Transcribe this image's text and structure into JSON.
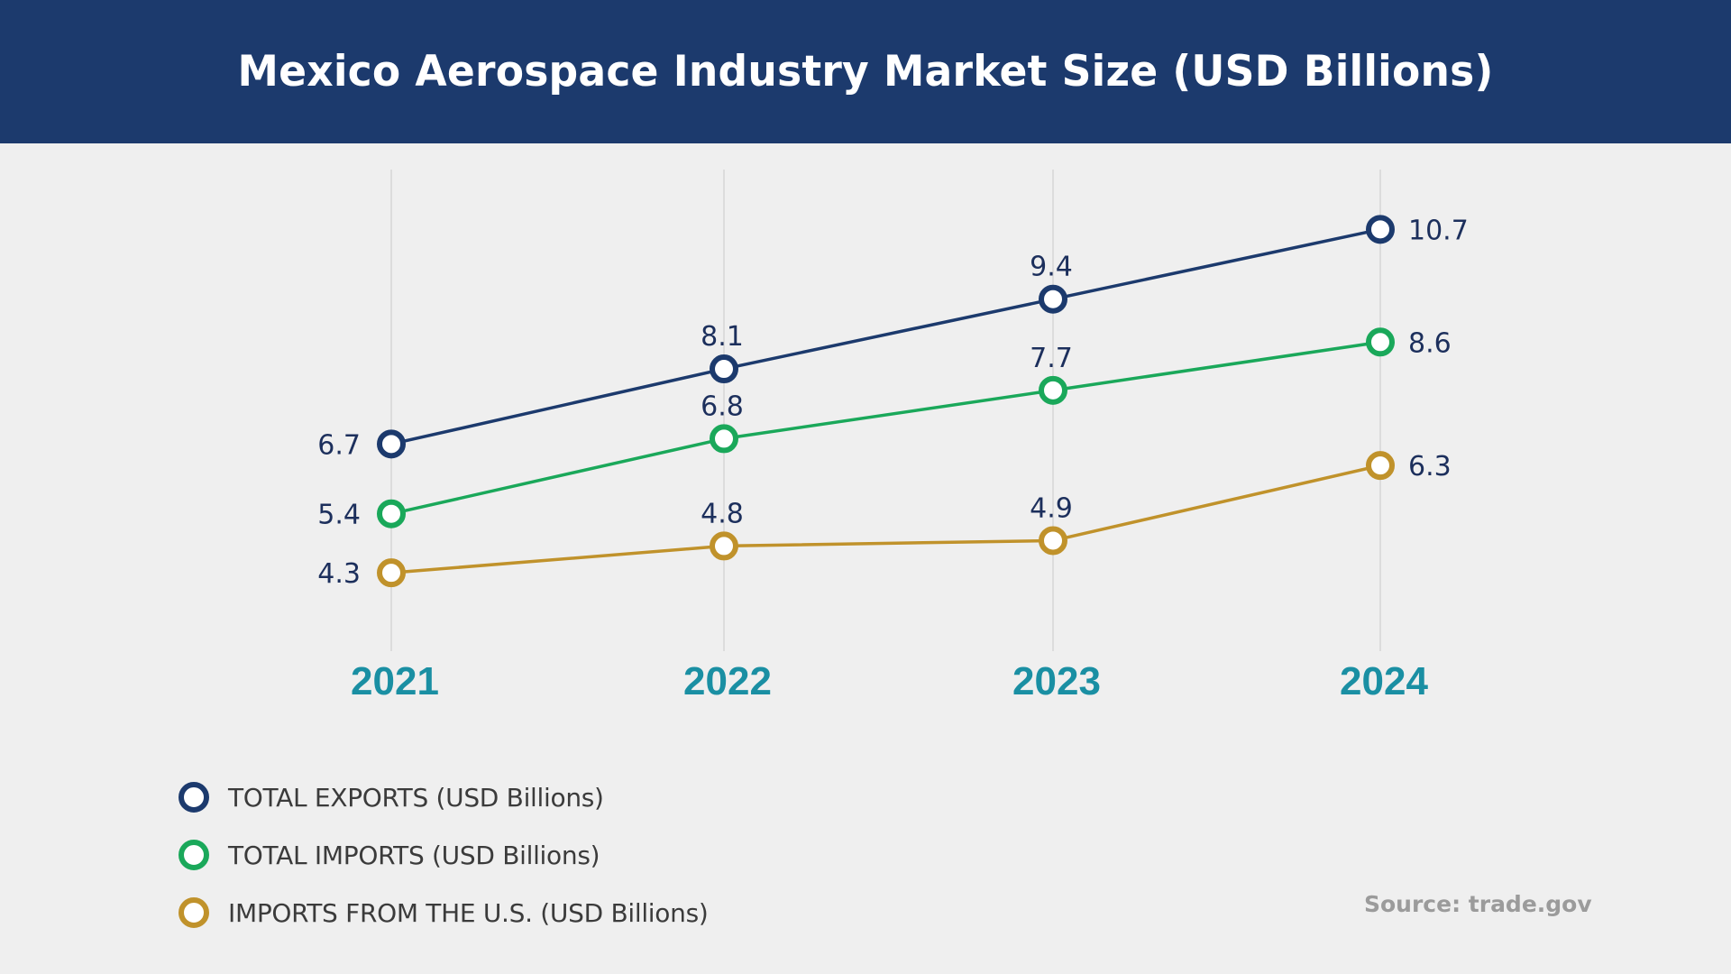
{
  "header": {
    "title": "Mexico Aerospace Industry Market Size (USD Billions)"
  },
  "colors": {
    "header_bg": "#1c3a6d",
    "background": "#efefef",
    "year_label": "#1a8fa3",
    "value_label": "#1c2f5c",
    "gridline": "#d6d6d6",
    "source_text": "#9b9b9b"
  },
  "chart_data": {
    "type": "line",
    "title": "Mexico Aerospace Industry Market Size (USD Billions)",
    "xlabel": "",
    "ylabel": "",
    "categories": [
      "2021",
      "2022",
      "2023",
      "2024"
    ],
    "grid": "vertical gridlines at each year",
    "legend_placement": "bottom-left",
    "ylim": [
      4,
      11
    ],
    "series": [
      {
        "name": "TOTAL EXPORTS (USD Billions)",
        "color": "#1c3a6d",
        "values": [
          6.7,
          8.1,
          9.4,
          10.7
        ],
        "labels": [
          "6.7",
          "8.1",
          "9.4",
          "10.7"
        ]
      },
      {
        "name": "TOTAL IMPORTS (USD Billions)",
        "color": "#1aa85a",
        "values": [
          5.4,
          6.8,
          7.7,
          8.6
        ],
        "labels": [
          "5.4",
          "6.8",
          "7.7",
          "8.6"
        ]
      },
      {
        "name": "IMPORTS FROM THE U.S. (USD Billions)",
        "color": "#c0922b",
        "values": [
          4.3,
          4.8,
          4.9,
          6.3
        ],
        "labels": [
          "4.3",
          "4.8",
          "4.9",
          "6.3"
        ]
      }
    ]
  },
  "legend": {
    "items": [
      {
        "label": "TOTAL EXPORTS (USD Billions)",
        "color": "#1c3a6d"
      },
      {
        "label": "TOTAL IMPORTS (USD Billions)",
        "color": "#1aa85a"
      },
      {
        "label": "IMPORTS FROM THE U.S. (USD Billions)",
        "color": "#c0922b"
      }
    ]
  },
  "source": "Source: trade.gov"
}
